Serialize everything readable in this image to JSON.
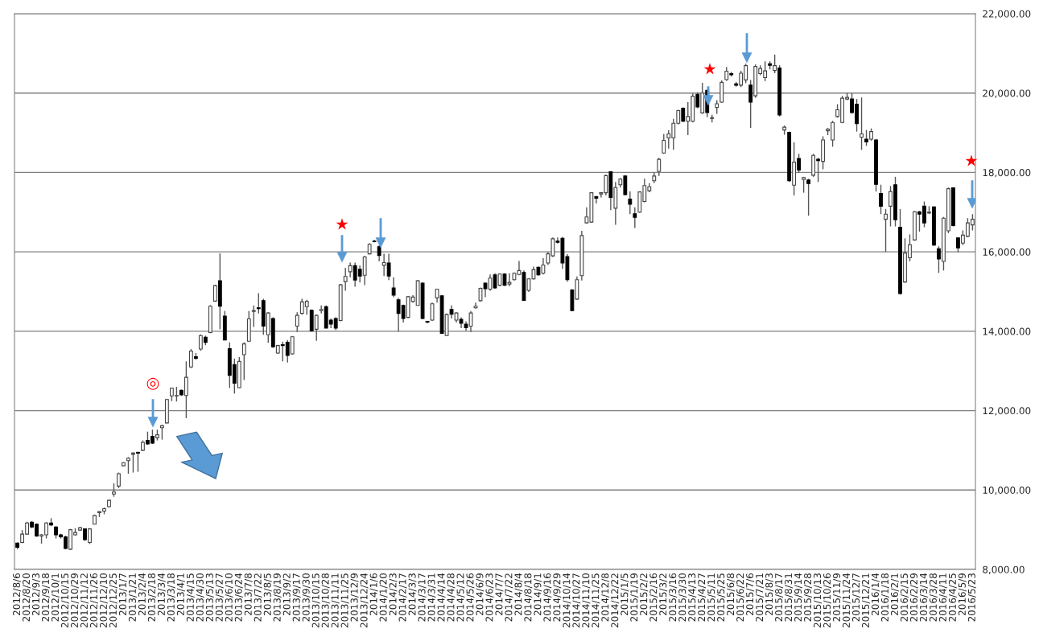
{
  "chart_data": {
    "type": "candlestick",
    "categories": [
      "2012/8/6",
      null,
      "2012/8/20",
      null,
      "2012/9/3",
      null,
      "2012/9/18",
      null,
      "2012/10/1",
      null,
      "2012/10/15",
      null,
      "2012/10/29",
      null,
      "2012/11/12",
      null,
      "2012/11/26",
      null,
      "2012/12/10",
      null,
      "2012/12/25",
      null,
      "2013/1/7",
      null,
      "2013/1/21",
      null,
      "2013/2/4",
      null,
      "2013/2/18",
      null,
      "2013/3/4",
      null,
      "2013/3/18",
      null,
      "2013/4/1",
      null,
      "2013/4/15",
      null,
      "2013/4/30",
      null,
      "2013/5/13",
      null,
      "2013/5/27",
      null,
      "2013/6/10",
      null,
      "2013/6/24",
      null,
      "2013/7/8",
      null,
      "2013/7/22",
      null,
      "2013/8/5",
      null,
      "2013/8/19",
      null,
      "2013/9/2",
      null,
      "2013/9/17",
      null,
      "2013/9/30",
      null,
      "2013/10/15",
      null,
      "2013/10/28",
      null,
      "2013/11/11",
      null,
      "2013/11/25",
      null,
      "2013/12/9",
      null,
      "2013/12/24",
      null,
      "2014/1/6",
      null,
      "2014/1/20",
      null,
      "2014/2/3",
      null,
      "2014/2/17",
      null,
      "2014/3/3",
      null,
      "2014/3/17",
      null,
      "2014/3/31",
      null,
      "2014/4/14",
      null,
      "2014/4/28",
      null,
      "2014/5/12",
      null,
      "2014/5/26",
      null,
      "2014/6/9",
      null,
      "2014/6/23",
      null,
      "2014/7/7",
      null,
      "2014/7/22",
      null,
      "2014/8/4",
      null,
      "2014/8/18",
      null,
      "2014/9/1",
      null,
      "2014/9/16",
      null,
      "2014/9/29",
      null,
      "2014/10/14",
      null,
      "2014/10/27",
      null,
      "2014/11/10",
      null,
      "2014/11/25",
      null,
      "2014/12/8",
      null,
      "2014/12/22",
      null,
      "2015/1/5",
      null,
      "2015/1/19",
      null,
      "2015/2/2",
      null,
      "2015/2/16",
      null,
      "2015/3/2",
      null,
      "2015/3/16",
      null,
      "2015/3/30",
      null,
      "2015/4/13",
      null,
      "2015/4/27",
      null,
      "2015/5/11",
      null,
      "2015/5/25",
      null,
      "2015/6/8",
      null,
      "2015/6/22",
      null,
      "2015/7/6",
      null,
      "2015/7/21",
      null,
      "2015/8/3",
      null,
      "2015/8/17",
      null,
      "2015/8/31",
      null,
      "2015/9/14",
      null,
      "2015/9/28",
      null,
      "2015/10/13",
      null,
      "2015/10/26",
      null,
      "2015/11/9",
      null,
      "2015/11/24",
      null,
      "2015/12/7",
      null,
      "2015/12/21",
      null,
      "2016/1/4",
      null,
      "2016/1/18",
      null,
      "2016/2/1",
      null,
      "2016/2/15",
      null,
      "2016/2/29",
      null,
      "2016/3/14",
      null,
      "2016/3/28",
      null,
      "2016/4/11",
      null,
      "2016/4/25",
      null,
      "2016/5/9",
      null,
      "2016/5/23"
    ],
    "ohlc": [
      [
        8660,
        8680,
        8510,
        8560
      ],
      [
        8680,
        8990,
        8660,
        8890
      ],
      [
        8890,
        9200,
        8890,
        9170
      ],
      [
        9190,
        9220,
        9040,
        9070
      ],
      [
        9140,
        9160,
        8820,
        8840
      ],
      [
        8840,
        8890,
        8650,
        8870
      ],
      [
        8870,
        9190,
        8780,
        9170
      ],
      [
        9170,
        9290,
        9090,
        9120
      ],
      [
        9070,
        9090,
        8780,
        8870
      ],
      [
        8870,
        8900,
        8780,
        8820
      ],
      [
        8820,
        8850,
        8510,
        8530
      ],
      [
        8510,
        9020,
        8490,
        9000
      ],
      [
        8870,
        9040,
        8850,
        8930
      ],
      [
        8990,
        9070,
        8970,
        9050
      ],
      [
        9020,
        9030,
        8720,
        8750
      ],
      [
        8680,
        9040,
        8640,
        9020
      ],
      [
        9140,
        9380,
        9140,
        9360
      ],
      [
        9430,
        9470,
        9320,
        9460
      ],
      [
        9470,
        9560,
        9390,
        9530
      ],
      [
        9580,
        9760,
        9560,
        9740
      ],
      [
        9900,
        10170,
        9830,
        9950
      ],
      [
        10100,
        10440,
        10050,
        10410
      ],
      [
        10610,
        10700,
        10600,
        10690
      ],
      [
        10740,
        10830,
        10410,
        10800
      ],
      [
        10900,
        10950,
        10440,
        10930
      ],
      [
        10950,
        10960,
        10460,
        10930
      ],
      [
        11000,
        11250,
        10980,
        11200
      ],
      [
        11250,
        11470,
        11140,
        11160
      ],
      [
        11350,
        11520,
        11160,
        11180
      ],
      [
        11320,
        11520,
        11250,
        11390
      ],
      [
        11570,
        11640,
        11270,
        11620
      ],
      [
        11690,
        12300,
        11680,
        12280
      ],
      [
        12370,
        12580,
        12240,
        12570
      ],
      [
        12370,
        12600,
        12230,
        12380
      ],
      [
        12510,
        12530,
        12370,
        12400
      ],
      [
        12380,
        13240,
        11810,
        12840
      ],
      [
        13100,
        13550,
        13070,
        13500
      ],
      [
        13360,
        13450,
        13280,
        13320
      ],
      [
        13550,
        13920,
        13510,
        13890
      ],
      [
        13850,
        13890,
        13650,
        13720
      ],
      [
        13970,
        14660,
        13950,
        14630
      ],
      [
        14760,
        15170,
        14740,
        15150
      ],
      [
        15270,
        15960,
        14050,
        14630
      ],
      [
        14380,
        14510,
        13770,
        13780
      ],
      [
        13560,
        13720,
        12570,
        12890
      ],
      [
        13160,
        13310,
        12430,
        12690
      ],
      [
        12580,
        13350,
        12570,
        13240
      ],
      [
        13410,
        13720,
        12770,
        13680
      ],
      [
        13750,
        14510,
        13730,
        14310
      ],
      [
        14500,
        14650,
        14110,
        14520
      ],
      [
        14590,
        14960,
        14450,
        14570
      ],
      [
        14770,
        14820,
        13910,
        14130
      ],
      [
        13910,
        14480,
        13710,
        14460
      ],
      [
        14320,
        14350,
        13580,
        13610
      ],
      [
        13450,
        13660,
        13430,
        13640
      ],
      [
        13660,
        13740,
        13240,
        13640
      ],
      [
        13720,
        13780,
        13210,
        13390
      ],
      [
        13430,
        13880,
        13410,
        13860
      ],
      [
        14130,
        14480,
        13980,
        14400
      ],
      [
        14450,
        14820,
        14420,
        14740
      ],
      [
        14620,
        14790,
        14420,
        14750
      ],
      [
        14530,
        14550,
        13990,
        14010
      ],
      [
        14050,
        14420,
        13760,
        14400
      ],
      [
        14520,
        14650,
        14450,
        14550
      ],
      [
        14620,
        14650,
        14080,
        14080
      ],
      [
        14280,
        14320,
        14080,
        14180
      ],
      [
        14320,
        14350,
        14030,
        14080
      ],
      [
        14270,
        15190,
        14250,
        15170
      ],
      [
        15250,
        15600,
        15020,
        15380
      ],
      [
        15500,
        15730,
        15360,
        15650
      ],
      [
        15650,
        15730,
        15120,
        15290
      ],
      [
        15560,
        15660,
        15230,
        15390
      ],
      [
        15410,
        15900,
        15160,
        15870
      ],
      [
        15950,
        16220,
        15930,
        16190
      ],
      [
        16270,
        16300,
        16240,
        16260
      ],
      [
        16130,
        16170,
        15760,
        15910
      ],
      [
        15660,
        15950,
        15390,
        15730
      ],
      [
        15720,
        15950,
        15290,
        15390
      ],
      [
        15090,
        15360,
        14860,
        14910
      ],
      [
        14790,
        14840,
        13990,
        14450
      ],
      [
        14650,
        14670,
        14220,
        14320
      ],
      [
        14350,
        14890,
        14330,
        14870
      ],
      [
        14750,
        14910,
        14720,
        14860
      ],
      [
        14650,
        15290,
        14650,
        15270
      ],
      [
        15210,
        15230,
        14300,
        14320
      ],
      [
        14250,
        14260,
        14200,
        14230
      ],
      [
        14280,
        14720,
        14260,
        14690
      ],
      [
        14840,
        15070,
        14720,
        15060
      ],
      [
        14890,
        14910,
        13930,
        13950
      ],
      [
        13890,
        14450,
        13880,
        14420
      ],
      [
        14550,
        14650,
        14320,
        14430
      ],
      [
        14280,
        14480,
        14220,
        14460
      ],
      [
        14300,
        14350,
        14080,
        14200
      ],
      [
        14180,
        14250,
        14010,
        14090
      ],
      [
        14130,
        14510,
        13980,
        14460
      ],
      [
        14590,
        14720,
        14570,
        14630
      ],
      [
        14770,
        15100,
        14750,
        15080
      ],
      [
        15210,
        15230,
        14860,
        15070
      ],
      [
        15060,
        15430,
        15020,
        15340
      ],
      [
        15420,
        15460,
        15070,
        15090
      ],
      [
        15160,
        15460,
        15130,
        15440
      ],
      [
        15440,
        15460,
        15140,
        15160
      ],
      [
        15190,
        15460,
        15130,
        15230
      ],
      [
        15300,
        15480,
        15280,
        15460
      ],
      [
        15430,
        15770,
        15410,
        15530
      ],
      [
        15480,
        15530,
        14760,
        14780
      ],
      [
        15030,
        15340,
        14990,
        15320
      ],
      [
        15320,
        15630,
        15300,
        15550
      ],
      [
        15610,
        15630,
        15400,
        15420
      ],
      [
        15460,
        15840,
        15430,
        15670
      ],
      [
        15720,
        16000,
        15670,
        15950
      ],
      [
        15900,
        16360,
        15870,
        16330
      ],
      [
        16270,
        16360,
        16210,
        16240
      ],
      [
        16340,
        16380,
        15570,
        15720
      ],
      [
        15880,
        15940,
        15250,
        15300
      ],
      [
        15040,
        15060,
        14520,
        14520
      ],
      [
        14810,
        15380,
        14790,
        15300
      ],
      [
        15400,
        16530,
        15280,
        16410
      ],
      [
        16730,
        17120,
        16710,
        16880
      ],
      [
        16750,
        17500,
        16730,
        17490
      ],
      [
        17390,
        17410,
        17220,
        17350
      ],
      [
        17460,
        17500,
        17370,
        17490
      ],
      [
        17490,
        17950,
        17420,
        17920
      ],
      [
        18020,
        18030,
        17050,
        17370
      ],
      [
        17100,
        17760,
        16680,
        17620
      ],
      [
        17690,
        17860,
        17620,
        17830
      ],
      [
        17910,
        17930,
        17420,
        17440
      ],
      [
        17330,
        17520,
        16950,
        17200
      ],
      [
        16960,
        17120,
        16600,
        16870
      ],
      [
        17000,
        17520,
        16980,
        17510
      ],
      [
        17270,
        17840,
        17250,
        17670
      ],
      [
        17540,
        17730,
        17500,
        17640
      ],
      [
        17790,
        18000,
        17730,
        17910
      ],
      [
        18030,
        18370,
        17910,
        18330
      ],
      [
        18490,
        18970,
        18470,
        18810
      ],
      [
        18870,
        19060,
        18600,
        18970
      ],
      [
        18870,
        19350,
        18570,
        19240
      ],
      [
        19240,
        19580,
        19210,
        19560
      ],
      [
        19620,
        19640,
        19270,
        19290
      ],
      [
        19290,
        19770,
        18940,
        19410
      ],
      [
        19290,
        19990,
        19260,
        19920
      ],
      [
        19970,
        20020,
        19620,
        19650
      ],
      [
        19500,
        20260,
        19480,
        20000
      ],
      [
        20070,
        20090,
        19390,
        19510
      ],
      [
        19360,
        19450,
        19260,
        19380
      ],
      [
        19640,
        19820,
        19480,
        19730
      ],
      [
        19770,
        20320,
        19750,
        20270
      ],
      [
        20340,
        20660,
        20310,
        20550
      ],
      [
        20490,
        20530,
        20420,
        20460
      ],
      [
        20230,
        20280,
        20160,
        20200
      ],
      [
        20200,
        20560,
        20150,
        20500
      ],
      [
        20330,
        20740,
        20250,
        20690
      ],
      [
        20200,
        20330,
        19120,
        19770
      ],
      [
        19930,
        20720,
        19880,
        20670
      ],
      [
        20490,
        20700,
        20450,
        20620
      ],
      [
        20390,
        20800,
        20300,
        20560
      ],
      [
        20740,
        20800,
        20600,
        20700
      ],
      [
        20570,
        20970,
        20500,
        20690
      ],
      [
        20630,
        20700,
        19410,
        19450
      ],
      [
        19070,
        19180,
        18950,
        19140
      ],
      [
        19010,
        19030,
        17760,
        17790
      ],
      [
        17680,
        18760,
        17420,
        18260
      ],
      [
        18350,
        18470,
        17990,
        18060
      ],
      [
        17820,
        17890,
        17490,
        17870
      ],
      [
        17810,
        17840,
        16910,
        17720
      ],
      [
        17930,
        18470,
        17890,
        18430
      ],
      [
        18330,
        18370,
        17760,
        18300
      ],
      [
        18280,
        18910,
        18080,
        18820
      ],
      [
        19050,
        19120,
        18940,
        19090
      ],
      [
        18820,
        19300,
        18650,
        19260
      ],
      [
        19410,
        19720,
        19380,
        19580
      ],
      [
        19260,
        19930,
        19240,
        19870
      ],
      [
        19850,
        20000,
        19820,
        19890
      ],
      [
        19850,
        20000,
        19480,
        19510
      ],
      [
        19720,
        19850,
        19030,
        19230
      ],
      [
        18890,
        19890,
        18570,
        18970
      ],
      [
        18840,
        19070,
        18670,
        18770
      ],
      [
        18840,
        19110,
        18800,
        19030
      ],
      [
        18820,
        18840,
        17520,
        17700
      ],
      [
        17470,
        17690,
        16950,
        17150
      ],
      [
        16820,
        17080,
        16000,
        16950
      ],
      [
        17150,
        17660,
        16640,
        17520
      ],
      [
        17690,
        17890,
        16640,
        16810
      ],
      [
        16620,
        17080,
        14920,
        14950
      ],
      [
        15240,
        16340,
        15220,
        15970
      ],
      [
        15850,
        16440,
        15760,
        16180
      ],
      [
        16300,
        17030,
        16280,
        17010
      ],
      [
        17010,
        17030,
        16510,
        16950
      ],
      [
        17150,
        17270,
        16620,
        16730
      ],
      [
        16980,
        17150,
        16950,
        17000
      ],
      [
        17130,
        17150,
        16150,
        16170
      ],
      [
        16080,
        16140,
        15470,
        15820
      ],
      [
        15760,
        16880,
        15530,
        16850
      ],
      [
        16530,
        17620,
        16470,
        17590
      ],
      [
        17610,
        17620,
        16640,
        16660
      ],
      [
        16350,
        16370,
        15990,
        16100
      ],
      [
        16220,
        16540,
        16170,
        16420
      ],
      [
        16390,
        16850,
        16370,
        16730
      ],
      [
        16680,
        16950,
        16540,
        16820
      ]
    ],
    "ylim": [
      8000,
      22000
    ],
    "yticks": [
      {
        "value": 8000,
        "label": "8,000.00"
      },
      {
        "value": 10000,
        "label": "10,000.00"
      },
      {
        "value": 12000,
        "label": "12,000.00"
      },
      {
        "value": 14000,
        "label": "14,000.00"
      },
      {
        "value": 16000,
        "label": "16,000.00"
      },
      {
        "value": 18000,
        "label": "18,000.00"
      },
      {
        "value": 20000,
        "label": "20,000.00"
      },
      {
        "value": 22000,
        "label": "22,000.00"
      }
    ],
    "grid": "y",
    "annotations": [
      "◎",
      "★",
      "★",
      "★"
    ]
  }
}
